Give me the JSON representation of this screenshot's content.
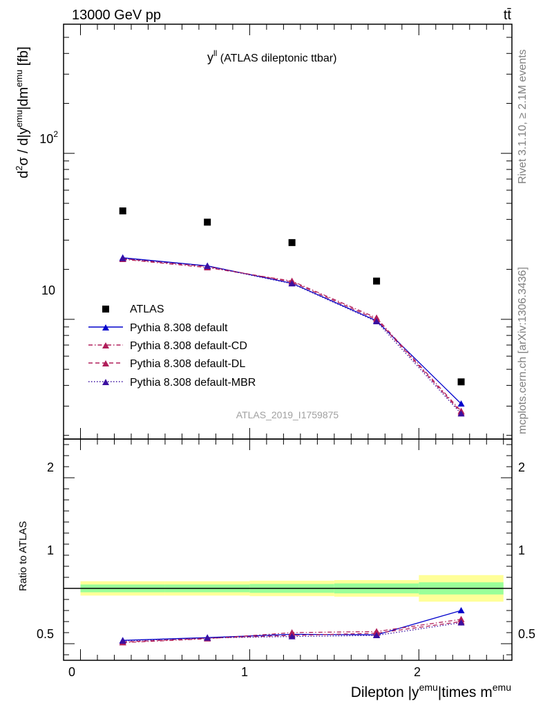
{
  "header": {
    "energy_label": "13000 GeV pp",
    "process_label": "tt̄"
  },
  "side_labels": {
    "rivet": "Rivet 3.1.10, ≥ 2.1M events",
    "mcplots": "mcplots.cern.ch [arXiv:1306.3436]"
  },
  "colors": {
    "data": "#000000",
    "default": "#0000cc",
    "cd": "#b01e5a",
    "dl": "#b01e5a",
    "mbr": "#3a0fa0",
    "band_outer": "#ffff99",
    "band_inner": "#99ff99",
    "watermark": "#a0a0a0"
  },
  "chart_data": [
    {
      "type": "scatter",
      "title": "y^ll (ATLAS dileptonic ttbar)",
      "title_main": "y",
      "title_sup": "ll",
      "title_rest": " (ATLAS dileptonic ttbar)",
      "ylabel": "d²σ / d|y^emu|dm^emu [fb]",
      "watermark": "ATLAS_2019_I1759875",
      "log_y": true,
      "xlim": [
        -0.1,
        2.55
      ],
      "ylim": [
        1.9,
        600
      ],
      "ytick_labels": {
        "ten": "10",
        "hundred": "10",
        "hundred_exp": "2"
      },
      "x": [
        0.25,
        0.75,
        1.25,
        1.75,
        2.25
      ],
      "series": [
        {
          "name": "ATLAS",
          "key": "data",
          "marker": "square",
          "values": [
            45.0,
            38.5,
            29.0,
            17.0,
            4.2
          ]
        },
        {
          "name": "Pythia 8.308 default",
          "key": "default",
          "marker": "triangle",
          "dash": "solid",
          "values": [
            23.5,
            21.0,
            16.5,
            9.8,
            3.1
          ]
        },
        {
          "name": "Pythia 8.308 default-CD",
          "key": "cd",
          "marker": "triangle",
          "dash": "dashdot",
          "values": [
            23.0,
            20.5,
            17.0,
            10.2,
            2.8
          ]
        },
        {
          "name": "Pythia 8.308 default-DL",
          "key": "dl",
          "marker": "triangle",
          "dash": "dashed",
          "values": [
            23.2,
            20.8,
            16.8,
            10.0,
            2.75
          ]
        },
        {
          "name": "Pythia 8.308 default-MBR",
          "key": "mbr",
          "marker": "triangle",
          "dash": "dotted",
          "values": [
            23.3,
            20.9,
            16.4,
            9.7,
            2.7
          ]
        }
      ]
    },
    {
      "type": "line",
      "ylabel": "Ratio to ATLAS",
      "xlabel": "Dilepton |y^emu|times m^emu",
      "xlabel_parts": {
        "a": "Dilepton |y",
        "sup1": "emu",
        "b": "|times m",
        "sup2": "emu"
      },
      "xlim": [
        -0.1,
        2.55
      ],
      "ylim": [
        0.35,
        2.35
      ],
      "xtick_labels": [
        "0",
        "1",
        "2"
      ],
      "ytick_labels": [
        "0.5",
        "1",
        "2"
      ],
      "bins": [
        [
          0,
          0.5
        ],
        [
          0.5,
          1.0
        ],
        [
          1.0,
          1.5
        ],
        [
          1.5,
          2.0
        ],
        [
          2.0,
          2.5
        ]
      ],
      "x": [
        0.25,
        0.75,
        1.25,
        1.75,
        2.25
      ],
      "band_outer": [
        0.065,
        0.065,
        0.07,
        0.075,
        0.12
      ],
      "band_inner": [
        0.035,
        0.035,
        0.04,
        0.045,
        0.055
      ],
      "series": [
        {
          "name": "Pythia 8.308 default",
          "key": "default",
          "dash": "solid",
          "values": [
            0.53,
            0.555,
            0.585,
            0.58,
            0.8
          ],
          "err": [
            0.01,
            0.01,
            0.01,
            0.012,
            0.025
          ]
        },
        {
          "name": "Pythia 8.308 default-CD",
          "key": "cd",
          "dash": "dashdot",
          "values": [
            0.51,
            0.545,
            0.6,
            0.61,
            0.72
          ],
          "err": [
            0.01,
            0.01,
            0.01,
            0.012,
            0.025
          ]
        },
        {
          "name": "Pythia 8.308 default-DL",
          "key": "dl",
          "dash": "dashed",
          "values": [
            0.515,
            0.55,
            0.575,
            0.595,
            0.7
          ],
          "err": [
            0.01,
            0.01,
            0.01,
            0.012,
            0.025
          ]
        },
        {
          "name": "Pythia 8.308 default-MBR",
          "key": "mbr",
          "dash": "dotted",
          "values": [
            0.525,
            0.552,
            0.565,
            0.575,
            0.69
          ],
          "err": [
            0.01,
            0.01,
            0.01,
            0.012,
            0.025
          ]
        }
      ]
    }
  ]
}
